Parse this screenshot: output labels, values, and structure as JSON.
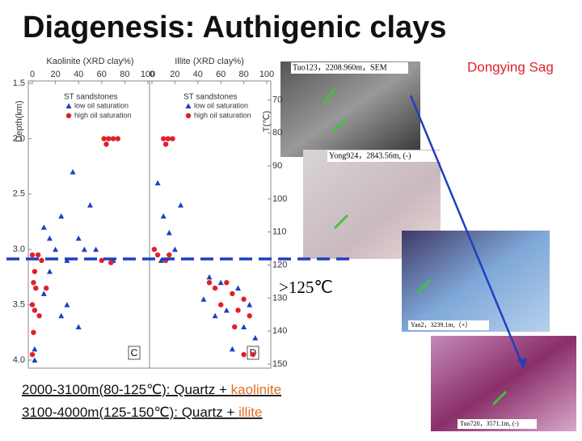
{
  "title": "Diagenesis: Authigenic clays",
  "region_label": "Dongying Sag",
  "threshold_label": ">125℃",
  "photos": [
    {
      "caption": "Tuo123，2208.960m，SEM"
    },
    {
      "caption": "Yong924，2843.56m, (-)"
    },
    {
      "caption": "Yan2，3239.1m,（+）"
    },
    {
      "caption": "Tuo720，3571.1m, (-)"
    }
  ],
  "bottom_lines": [
    {
      "prefix": "2000-3100m(80-125℃): Quartz + ",
      "mineral": "kaolinite"
    },
    {
      "prefix": "3100-4000m(125-150℃): Quartz + ",
      "mineral": "illite"
    }
  ],
  "chart_data": [
    {
      "type": "scatter",
      "title": "Kaolinite (XRD clay%)",
      "ylabel": "Depth(km)",
      "panel_label": "C",
      "legend_title": "ST sandstones",
      "xlim": [
        0,
        100
      ],
      "xticks": [
        0,
        20,
        40,
        60,
        80,
        100
      ],
      "ylim": [
        1.5,
        4.0
      ],
      "y_inverted": true,
      "yticks": [
        1.5,
        {
          "value": 2,
          "label": "2.0"
        },
        2.5,
        {
          "value": 3,
          "label": "3.0"
        },
        3.5,
        {
          "value": 4,
          "label": "4.0"
        }
      ],
      "series": [
        {
          "name": "low oil saturation",
          "color": "#1f3fbf",
          "marker": "triangle",
          "x": [
            35,
            50,
            25,
            10,
            15,
            40,
            20,
            45,
            55,
            30,
            70,
            15,
            10,
            30,
            25,
            40,
            2,
            2
          ],
          "values": [
            2.3,
            2.6,
            2.7,
            2.8,
            2.9,
            2.9,
            3.0,
            3.0,
            3.0,
            3.1,
            3.1,
            3.2,
            3.4,
            3.5,
            3.6,
            3.7,
            3.9,
            4.0
          ]
        },
        {
          "name": "high oil saturation",
          "color": "#e0202a",
          "marker": "circle",
          "x": [
            62,
            66,
            70,
            74,
            64,
            0,
            5,
            8,
            2,
            60,
            68,
            1,
            3,
            12,
            0,
            2,
            6,
            1,
            0
          ],
          "values": [
            2.0,
            2.0,
            2.0,
            2.0,
            2.05,
            3.05,
            3.05,
            3.1,
            3.2,
            3.1,
            3.12,
            3.3,
            3.35,
            3.35,
            3.5,
            3.55,
            3.6,
            3.75,
            3.95
          ]
        }
      ]
    },
    {
      "type": "scatter",
      "title": "Illite (XRD clay%)",
      "panel_label": "D",
      "legend_title": "ST sandstones",
      "xlim": [
        0,
        100
      ],
      "xticks": [
        0,
        20,
        40,
        60,
        80,
        100
      ],
      "ylim": [
        1.5,
        4.0
      ],
      "y_inverted": true,
      "y2label": "T(℃)",
      "y2lim": [
        65,
        150
      ],
      "y2ticks": [
        70,
        80,
        90,
        100,
        110,
        120,
        130,
        140,
        150
      ],
      "series": [
        {
          "name": "low oil saturation",
          "color": "#1f3fbf",
          "marker": "triangle",
          "x": [
            5,
            25,
            10,
            15,
            20,
            8,
            50,
            60,
            75,
            45,
            85,
            65,
            55,
            80,
            90,
            70
          ],
          "values": [
            2.4,
            2.6,
            2.7,
            2.85,
            3.0,
            3.1,
            3.25,
            3.3,
            3.35,
            3.45,
            3.5,
            3.55,
            3.6,
            3.7,
            3.8,
            3.9
          ]
        },
        {
          "name": "high oil saturation",
          "color": "#e0202a",
          "marker": "circle",
          "x": [
            10,
            14,
            18,
            12,
            2,
            5,
            12,
            15,
            50,
            55,
            65,
            70,
            60,
            80,
            75,
            85,
            72,
            80,
            88
          ],
          "values": [
            2.0,
            2.0,
            2.0,
            2.05,
            3.0,
            3.05,
            3.1,
            3.05,
            3.3,
            3.35,
            3.3,
            3.4,
            3.5,
            3.45,
            3.55,
            3.6,
            3.7,
            3.95,
            3.95
          ]
        }
      ]
    }
  ]
}
